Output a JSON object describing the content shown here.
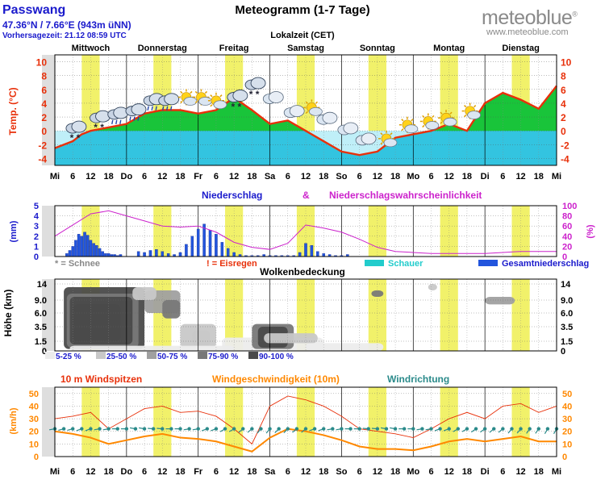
{
  "header": {
    "location": "Passwang",
    "coordinates": "47.36°N / 7.66°E (943m üNN)",
    "forecast_time": "Vorhersagezeit: 21.12 08:59 UTC",
    "title": "Meteogramm (1-7 Tage)",
    "timezone": "Lokalzeit (CET)",
    "brand": "meteoblue",
    "brand_mark": "®",
    "url": "www.meteoblue.com"
  },
  "colors": {
    "temp_line": "#e8300a",
    "temp_warm": "#19c43a",
    "temp_cold": "#33c4e0",
    "day_band": "#f1f16a",
    "precip_bar": "#2255dd",
    "prob_line": "#cc22cc",
    "shower": "#22cccc",
    "wind_gust": "#e8300a",
    "wind_speed": "#ff8800",
    "wind_dir": "#2a8a8a",
    "label_blue": "#1a1acc"
  },
  "axis": {
    "day_names": [
      "Mittwoch",
      "Donnerstag",
      "Freitag",
      "Samstag",
      "Sonntag",
      "Montag",
      "Dienstag"
    ],
    "bottom_labels": [
      "Mi",
      "6",
      "12",
      "18",
      "Do",
      "6",
      "12",
      "18",
      "Fr",
      "6",
      "12",
      "18",
      "Sa",
      "6",
      "12",
      "18",
      "So",
      "6",
      "12",
      "18",
      "Mo",
      "6",
      "12",
      "18",
      "Di",
      "6",
      "12",
      "18",
      "Mi"
    ]
  },
  "chart_data": [
    {
      "type": "area",
      "name": "temperature",
      "ylabel": "Temp. (°C)",
      "yticks": [
        -4,
        -2,
        0,
        2,
        4,
        6,
        8,
        10
      ],
      "ylim": [
        -5,
        11
      ],
      "x_hours": [
        0,
        6,
        9,
        12,
        18,
        24,
        30,
        36,
        42,
        48,
        54,
        60,
        66,
        72,
        78,
        84,
        90,
        96,
        102,
        108,
        114,
        120,
        126,
        132,
        138,
        144,
        150,
        156,
        162,
        168
      ],
      "values": [
        -2.5,
        -1.5,
        -0.5,
        0,
        0.5,
        1,
        2.5,
        3,
        3,
        2.5,
        3,
        4.8,
        3,
        1,
        1.5,
        0,
        -1.5,
        -3,
        -3.5,
        -3,
        -1,
        -0.5,
        0,
        1,
        0,
        4,
        5.5,
        4.5,
        3.2,
        6.5
      ],
      "icons": [
        "snow",
        "snow",
        "rain",
        "rain",
        "rain",
        "rain",
        "sun",
        "sun",
        "sun",
        "snow",
        "snow",
        "cloud",
        "cloud",
        "sun",
        "cloud",
        "cloud",
        "cloud",
        "sun",
        "sun",
        "sun",
        "sun",
        "sun"
      ]
    },
    {
      "type": "bar",
      "name": "precipitation",
      "title_left": "Niederschlag",
      "title_amp": "&",
      "title_right": "Niederschlagswahrscheinlichkeit",
      "ylabel_left": "(mm)",
      "ylabel_right": "(%)",
      "yticks_left": [
        0,
        1,
        2,
        3,
        4,
        5
      ],
      "yticks_right": [
        0,
        20,
        40,
        60,
        80,
        100
      ],
      "ylim_left": [
        0,
        5
      ],
      "ylim_right": [
        0,
        100
      ],
      "bars_x_hours": [
        4,
        5,
        6,
        7,
        8,
        9,
        10,
        11,
        12,
        13,
        14,
        15,
        16,
        17,
        18,
        19,
        20,
        21,
        22,
        28,
        30,
        32,
        34,
        36,
        38,
        40,
        42,
        44,
        46,
        48,
        50,
        52,
        54,
        56,
        58,
        60,
        62,
        64,
        66,
        68,
        70,
        72,
        74,
        76,
        78,
        80,
        82,
        84,
        86,
        88,
        90,
        92,
        94,
        96,
        98
      ],
      "bars_mm": [
        0.3,
        0.6,
        1.0,
        1.6,
        2.2,
        2.0,
        2.4,
        2.1,
        1.6,
        1.3,
        1.1,
        0.8,
        0.5,
        0.3,
        0.3,
        0.2,
        0.2,
        0.1,
        0.2,
        0.5,
        0.4,
        0.6,
        0.7,
        0.5,
        0.3,
        0.2,
        0.4,
        1.2,
        2.0,
        2.7,
        3.2,
        2.6,
        2.2,
        1.4,
        0.8,
        0.4,
        0.2,
        0.1,
        0.1,
        0.1,
        0.2,
        0.1,
        0.1,
        0.1,
        0.1,
        0.1,
        0.4,
        1.3,
        1.1,
        0.5,
        0.3,
        0.2,
        0.1,
        0.1,
        0.2
      ],
      "prob_x_hours": [
        0,
        6,
        12,
        18,
        24,
        30,
        36,
        42,
        48,
        54,
        60,
        66,
        72,
        78,
        84,
        90,
        96,
        102,
        108,
        114,
        120,
        126,
        132,
        138,
        144,
        150,
        156,
        162,
        168
      ],
      "prob_pct": [
        40,
        62,
        84,
        90,
        80,
        70,
        60,
        58,
        60,
        48,
        28,
        18,
        14,
        26,
        62,
        56,
        48,
        34,
        18,
        10,
        8,
        6,
        6,
        6,
        6,
        8,
        10,
        10,
        10
      ],
      "legend": {
        "snow": "* = Schnee",
        "freezing_rain": "! = Eisregen",
        "shower": "Schauer",
        "total": "Gesamtniederschlag"
      }
    },
    {
      "type": "heatmap",
      "name": "cloud_cover",
      "title": "Wolkenbedeckung",
      "ylabel": "Höhe (km)",
      "yticks": [
        0,
        1.5,
        3.5,
        6.0,
        9.0,
        14
      ],
      "legend": [
        "5-25 %",
        "25-50 %",
        "50-75 %",
        "75-90 %",
        "90-100 %"
      ],
      "legend_colors": [
        "#ececec",
        "#c8c8c8",
        "#a0a0a0",
        "#787878",
        "#4a4a4a"
      ]
    },
    {
      "type": "line",
      "name": "wind",
      "title_gust": "10 m Windspitzen",
      "title_speed": "Windgeschwindigkeit (10m)",
      "title_dir": "Windrichtung",
      "ylabel": "(km/h)",
      "yticks": [
        0,
        10,
        20,
        30,
        40,
        50
      ],
      "ylim": [
        0,
        55
      ],
      "x_hours": [
        0,
        6,
        12,
        18,
        24,
        30,
        36,
        42,
        48,
        54,
        60,
        66,
        72,
        78,
        84,
        90,
        96,
        102,
        108,
        114,
        120,
        126,
        132,
        138,
        144,
        150,
        156,
        162,
        168
      ],
      "gust": [
        30,
        32,
        35,
        22,
        30,
        38,
        40,
        35,
        36,
        32,
        22,
        10,
        40,
        48,
        45,
        40,
        32,
        22,
        20,
        18,
        15,
        22,
        30,
        35,
        30,
        40,
        42,
        35,
        40
      ],
      "speed": [
        20,
        18,
        15,
        10,
        13,
        16,
        18,
        15,
        14,
        12,
        8,
        4,
        15,
        22,
        20,
        17,
        13,
        8,
        6,
        6,
        5,
        8,
        12,
        14,
        12,
        14,
        16,
        12,
        12
      ],
      "dir_deg": [
        260,
        255,
        250,
        260,
        270,
        280,
        275,
        270,
        260,
        250,
        240,
        230,
        220,
        225,
        230,
        250,
        260,
        270,
        275,
        280,
        270,
        260,
        250,
        240,
        235,
        230,
        220,
        215,
        210
      ]
    }
  ]
}
